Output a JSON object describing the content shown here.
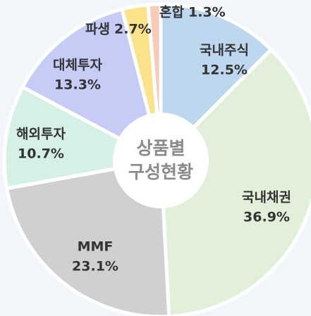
{
  "chart_data": {
    "type": "pie",
    "center_label": [
      "상품별",
      "구성현황"
    ],
    "categories": [
      "국내주식",
      "국내채권",
      "MMF",
      "해외투자",
      "대체투자",
      "파생",
      "혼합"
    ],
    "values": [
      12.5,
      36.9,
      23.1,
      10.7,
      13.3,
      2.7,
      1.3
    ],
    "value_labels": [
      "12.5%",
      "36.9%",
      "23.1%",
      "10.7%",
      "13.3%",
      "2.7%",
      "1.3%"
    ],
    "colors": [
      "#bdd7ee",
      "#e2efd9",
      "#d0d0d2",
      "#d6f0e6",
      "#c6ccf6",
      "#fde28c",
      "#f7cbb6"
    ]
  }
}
